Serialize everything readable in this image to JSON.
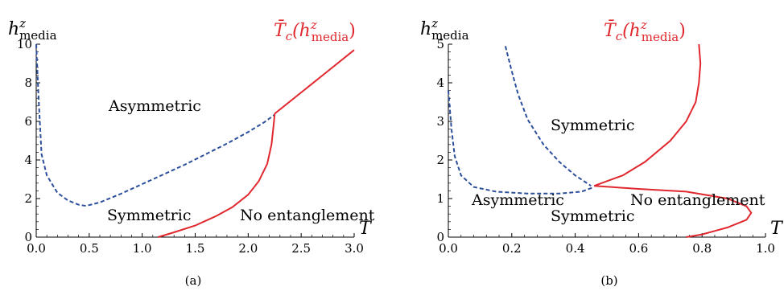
{
  "colors": {
    "red": "#e0282e",
    "blue": "#2b4f9b",
    "axis": "#000000"
  },
  "chart_data": [
    {
      "type": "line",
      "panel_label": "(a)",
      "xlabel": "T",
      "ylabel": {
        "base": "h",
        "sup": "z",
        "sub": "media"
      },
      "xlim": [
        0,
        3.0
      ],
      "ylim": [
        0,
        10
      ],
      "x_ticks": [
        "0.0",
        "0.5",
        "1.0",
        "1.5",
        "2.0",
        "2.5",
        "3.0"
      ],
      "y_ticks": [
        "0",
        "2",
        "4",
        "6",
        "8",
        "10"
      ],
      "red_curve_label": {
        "pre": "T̄",
        "sub_c": "c",
        "open": "(h",
        "sup": "z",
        "sub": "media",
        "close": ")"
      },
      "regions": [
        "Asymmetric",
        "Symmetric",
        "No entanglement"
      ],
      "series": [
        {
          "style": "dashed",
          "color": "blue",
          "x": [
            0.0,
            0.02,
            0.05,
            0.1,
            0.2,
            0.3,
            0.4,
            0.47,
            0.6,
            0.8,
            1.0,
            1.2,
            1.4,
            1.6,
            1.8,
            2.0,
            2.15,
            2.25
          ],
          "y": [
            10.0,
            7.5,
            4.3,
            3.2,
            2.3,
            1.9,
            1.68,
            1.62,
            1.8,
            2.25,
            2.75,
            3.25,
            3.75,
            4.3,
            4.85,
            5.45,
            5.95,
            6.35
          ]
        },
        {
          "style": "solid",
          "color": "red",
          "x": [
            1.15,
            1.3,
            1.5,
            1.7,
            1.85,
            2.0,
            2.1,
            2.18,
            2.22,
            2.24,
            2.25
          ],
          "y": [
            0.0,
            0.25,
            0.6,
            1.1,
            1.55,
            2.2,
            2.9,
            3.8,
            4.8,
            5.8,
            6.4
          ]
        },
        {
          "style": "solid",
          "color": "red",
          "x": [
            2.25,
            2.5,
            2.75,
            3.0
          ],
          "y": [
            6.4,
            7.5,
            8.6,
            9.7
          ]
        }
      ]
    },
    {
      "type": "line",
      "panel_label": "(b)",
      "xlabel": "T",
      "ylabel": {
        "base": "h",
        "sup": "z",
        "sub": "media"
      },
      "xlim": [
        0,
        1.0
      ],
      "ylim": [
        0,
        5
      ],
      "x_ticks": [
        "0.0",
        "0.2",
        "0.4",
        "0.6",
        "0.8",
        "1.0"
      ],
      "y_ticks": [
        "0",
        "1",
        "2",
        "3",
        "4",
        "5"
      ],
      "red_curve_label": {
        "pre": "T̄",
        "sub_c": "c",
        "open": "(h",
        "sup": "z",
        "sub": "media",
        "close": ")"
      },
      "regions": [
        "Symmetric",
        "Asymmetric",
        "No entanglement",
        "Symmetric"
      ],
      "series": [
        {
          "style": "dashed",
          "color": "blue",
          "x": [
            0.0,
            0.01,
            0.02,
            0.04,
            0.08,
            0.15,
            0.25,
            0.35,
            0.42,
            0.46
          ],
          "y": [
            3.8,
            2.8,
            2.1,
            1.6,
            1.3,
            1.18,
            1.13,
            1.13,
            1.18,
            1.3
          ]
        },
        {
          "style": "dashed",
          "color": "blue",
          "x": [
            0.18,
            0.2,
            0.22,
            0.25,
            0.3,
            0.35,
            0.4,
            0.45
          ],
          "y": [
            4.95,
            4.3,
            3.7,
            3.05,
            2.4,
            1.95,
            1.6,
            1.33
          ]
        },
        {
          "style": "solid",
          "color": "red",
          "x": [
            0.46,
            0.55,
            0.62,
            0.7,
            0.75,
            0.78,
            0.79,
            0.795,
            0.79
          ],
          "y": [
            1.33,
            1.6,
            1.95,
            2.5,
            3.0,
            3.5,
            4.0,
            4.5,
            5.0
          ]
        },
        {
          "style": "solid",
          "color": "red",
          "x": [
            0.46,
            0.6,
            0.75,
            0.88,
            0.94,
            0.955,
            0.94,
            0.88,
            0.8,
            0.75
          ],
          "y": [
            1.33,
            1.25,
            1.18,
            1.0,
            0.8,
            0.63,
            0.45,
            0.25,
            0.07,
            0.0
          ]
        }
      ]
    }
  ]
}
